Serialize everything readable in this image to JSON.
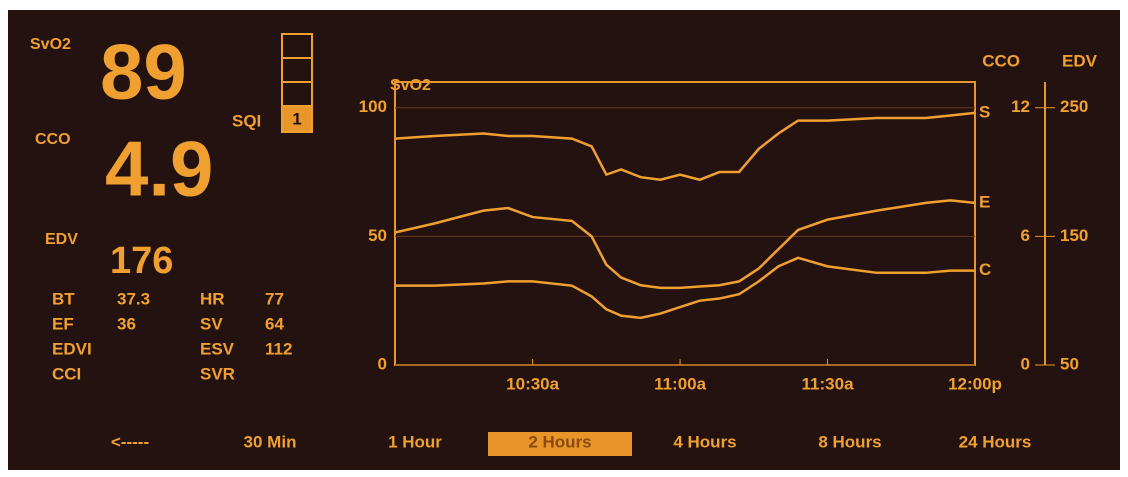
{
  "monitor": {
    "svo2": {
      "label": "SvO2",
      "value": 89
    },
    "cco": {
      "label": "CCO",
      "value": 4.9
    },
    "edv": {
      "label": "EDV",
      "value": 176
    },
    "sqi": {
      "label": "SQI",
      "value": 1
    },
    "params": [
      [
        {
          "label": "BT",
          "value": 37.3
        },
        {
          "label": "HR",
          "value": 77
        }
      ],
      [
        {
          "label": "EF",
          "value": 36
        },
        {
          "label": "SV",
          "value": 64
        }
      ],
      [
        {
          "label": "EDVI"
        },
        {
          "label": "ESV",
          "value": 112
        }
      ],
      [
        {
          "label": "CCI"
        },
        {
          "label": "SVR"
        }
      ]
    ],
    "time_scale": {
      "back": "<-----",
      "options": [
        {
          "label": "30 Min"
        },
        {
          "label": "1 Hour"
        },
        {
          "label": "2 Hours",
          "selected": true
        },
        {
          "label": "4 Hours"
        },
        {
          "label": "8 Hours"
        },
        {
          "label": "24 Hours"
        }
      ]
    }
  },
  "chart_data": {
    "type": "line",
    "title": "SvO2",
    "x": [
      2,
      10,
      20,
      25,
      30,
      38,
      42,
      45,
      48,
      52,
      56,
      60,
      64,
      68,
      72,
      76,
      80,
      84,
      90,
      100,
      110,
      115,
      120
    ],
    "xlim": [
      2,
      120
    ],
    "xticks": [
      {
        "value": 30,
        "label": "10:30a"
      },
      {
        "value": 60,
        "label": "11:00a"
      },
      {
        "value": 90,
        "label": "11:30a"
      },
      {
        "value": 120,
        "label": "12:00p"
      }
    ],
    "ylim": [
      0,
      110
    ],
    "yticks": [
      0,
      50,
      100
    ],
    "y2label": "EDV",
    "y2lim": [
      50,
      270
    ],
    "y2ticks": [
      50,
      150,
      250
    ],
    "y3label": "CCO",
    "y3lim": [
      0,
      13.2
    ],
    "y3ticks": [
      0,
      6,
      12
    ],
    "grid": true,
    "series": [
      {
        "name": "S",
        "color": "#f0a030",
        "values": [
          88,
          89,
          90,
          89,
          89,
          88,
          85,
          74,
          76,
          73,
          72,
          74,
          72,
          75,
          75,
          84,
          90,
          95,
          95,
          96,
          96,
          97,
          98
        ]
      },
      {
        "name": "E",
        "color": "#f0a030",
        "axis": "y2",
        "values": [
          153,
          160,
          170,
          172,
          165,
          162,
          150,
          128,
          118,
          112,
          110,
          110,
          111,
          112,
          115,
          125,
          140,
          155,
          163,
          170,
          176,
          178,
          176
        ]
      },
      {
        "name": "C",
        "color": "#f0a030",
        "axis": "y3",
        "values": [
          3.7,
          3.7,
          3.8,
          3.9,
          3.9,
          3.7,
          3.2,
          2.6,
          2.3,
          2.2,
          2.4,
          2.7,
          3.0,
          3.1,
          3.3,
          3.9,
          4.6,
          5.0,
          4.6,
          4.3,
          4.3,
          4.4,
          4.4
        ]
      }
    ]
  }
}
